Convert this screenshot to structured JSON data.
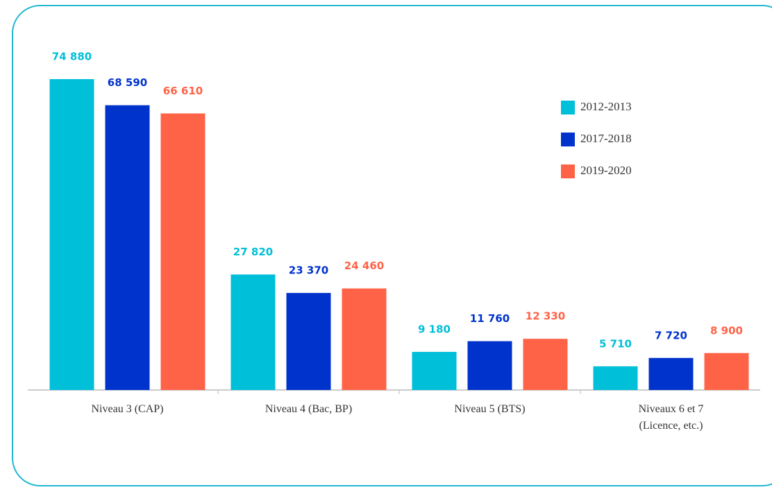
{
  "chart_data": {
    "type": "bar",
    "categories": [
      "Niveau 3 (CAP)",
      "Niveau 4 (Bac, BP)",
      "Niveau 5 (BTS)",
      "Niveaux 6 et 7\n(Licence, etc.)"
    ],
    "series": [
      {
        "name": "2012-2013",
        "color": "#00bfd8",
        "values": [
          74880,
          27820,
          9180,
          5710
        ],
        "value_labels": [
          "74 880",
          "27 820",
          "9 180",
          "5 710"
        ]
      },
      {
        "name": "2017-2018",
        "color": "#0033cc",
        "values": [
          68590,
          23370,
          11760,
          7720
        ],
        "value_labels": [
          "68 590",
          "23 370",
          "11 760",
          "7 720"
        ]
      },
      {
        "name": "2019-2020",
        "color": "#ff6347",
        "values": [
          66610,
          24460,
          12330,
          8900
        ],
        "value_labels": [
          "66 610",
          "24 460",
          "12 330",
          "8 900"
        ]
      }
    ],
    "legend": "upper right"
  }
}
